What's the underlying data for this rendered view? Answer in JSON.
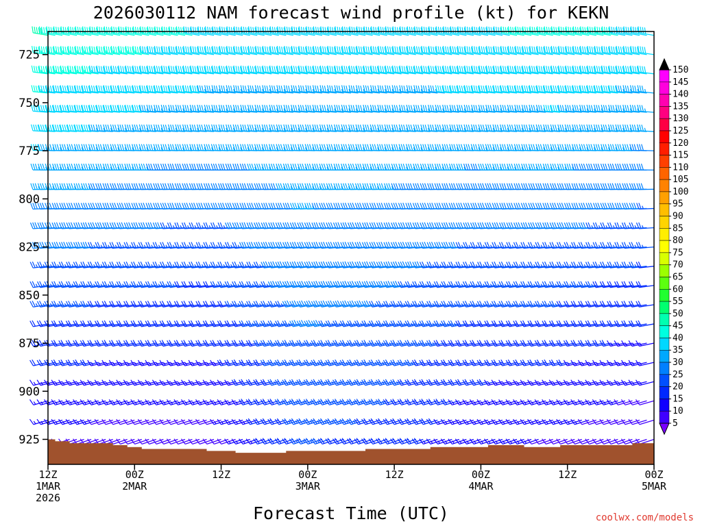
{
  "chart_data": {
    "type": "wind_barb_time_height",
    "title": "2026030112 NAM forecast wind profile (kt) for KEKN",
    "xlabel": "Forecast Time (UTC)",
    "ylabel": "",
    "credit": "coolwx.com/models",
    "y_axis": {
      "ticks": [
        725,
        750,
        775,
        800,
        825,
        850,
        875,
        900,
        925
      ],
      "range": [
        938,
        713
      ],
      "units": "hPa",
      "inverted": true
    },
    "x_axis": {
      "range_hours": [
        0,
        84
      ],
      "ticks": [
        {
          "hour": 0,
          "lines": [
            "12Z",
            "1MAR",
            "2026"
          ]
        },
        {
          "hour": 12,
          "lines": [
            "00Z",
            "2MAR"
          ]
        },
        {
          "hour": 24,
          "lines": [
            "12Z"
          ]
        },
        {
          "hour": 36,
          "lines": [
            "00Z",
            "3MAR"
          ]
        },
        {
          "hour": 48,
          "lines": [
            "12Z"
          ]
        },
        {
          "hour": 60,
          "lines": [
            "00Z",
            "4MAR"
          ]
        },
        {
          "hour": 72,
          "lines": [
            "12Z"
          ]
        },
        {
          "hour": 84,
          "lines": [
            "00Z",
            "5MAR"
          ]
        }
      ]
    },
    "surface_pressure": [
      {
        "hour": 0,
        "p": 925
      },
      {
        "hour": 1,
        "p": 926
      },
      {
        "hour": 3,
        "p": 927
      },
      {
        "hour": 9,
        "p": 928
      },
      {
        "hour": 11,
        "p": 929
      },
      {
        "hour": 13,
        "p": 930
      },
      {
        "hour": 22,
        "p": 931
      },
      {
        "hour": 26,
        "p": 932
      },
      {
        "hour": 33,
        "p": 931
      },
      {
        "hour": 44,
        "p": 930
      },
      {
        "hour": 53,
        "p": 929
      },
      {
        "hour": 61,
        "p": 928
      },
      {
        "hour": 66,
        "p": 929
      },
      {
        "hour": 71,
        "p": 928
      },
      {
        "hour": 81,
        "p": 927
      },
      {
        "hour": 84,
        "p": 927
      }
    ],
    "wind_field": {
      "time_step_hours": 1,
      "levels_hpa": [
        715,
        725,
        735,
        745,
        755,
        765,
        775,
        785,
        795,
        805,
        815,
        825,
        835,
        845,
        855,
        865,
        875,
        885,
        895,
        905,
        915,
        925
      ],
      "speed_profile_kt": [
        {
          "hour": 0,
          "top": 48,
          "bottom": 10
        },
        {
          "hour": 12,
          "top": 45,
          "bottom": 8
        },
        {
          "hour": 24,
          "top": 42,
          "bottom": 8
        },
        {
          "hour": 36,
          "top": 40,
          "bottom": 22
        },
        {
          "hour": 48,
          "top": 40,
          "bottom": 20
        },
        {
          "hour": 60,
          "top": 42,
          "bottom": 12
        },
        {
          "hour": 72,
          "top": 44,
          "bottom": 10
        },
        {
          "hour": 84,
          "top": 42,
          "bottom": 6
        }
      ],
      "direction_deg": {
        "upper": 280,
        "lower": 250
      }
    },
    "colorbar": {
      "ticks": [
        150,
        145,
        140,
        135,
        130,
        125,
        120,
        115,
        110,
        105,
        100,
        95,
        90,
        85,
        80,
        75,
        70,
        65,
        60,
        55,
        50,
        45,
        40,
        35,
        30,
        25,
        20,
        15,
        10,
        5
      ],
      "colors": [
        "#ff00ff",
        "#ff00dd",
        "#ff00b0",
        "#ff0080",
        "#ff0044",
        "#ff0000",
        "#ff1e00",
        "#ff4000",
        "#ff6400",
        "#ff8200",
        "#ffa000",
        "#ffbe00",
        "#ffd400",
        "#ffee00",
        "#ffff00",
        "#d8ff00",
        "#9cff00",
        "#5cff10",
        "#20ff30",
        "#00ff70",
        "#00ffb0",
        "#00ffe0",
        "#00d8ff",
        "#00a8ff",
        "#0080ff",
        "#0050ff",
        "#0028ff",
        "#1000ff",
        "#4000ff",
        "#7a00ff"
      ]
    },
    "colors": {
      "terrain": "#a0522d",
      "frame": "#000000",
      "background": "#ffffff"
    }
  }
}
